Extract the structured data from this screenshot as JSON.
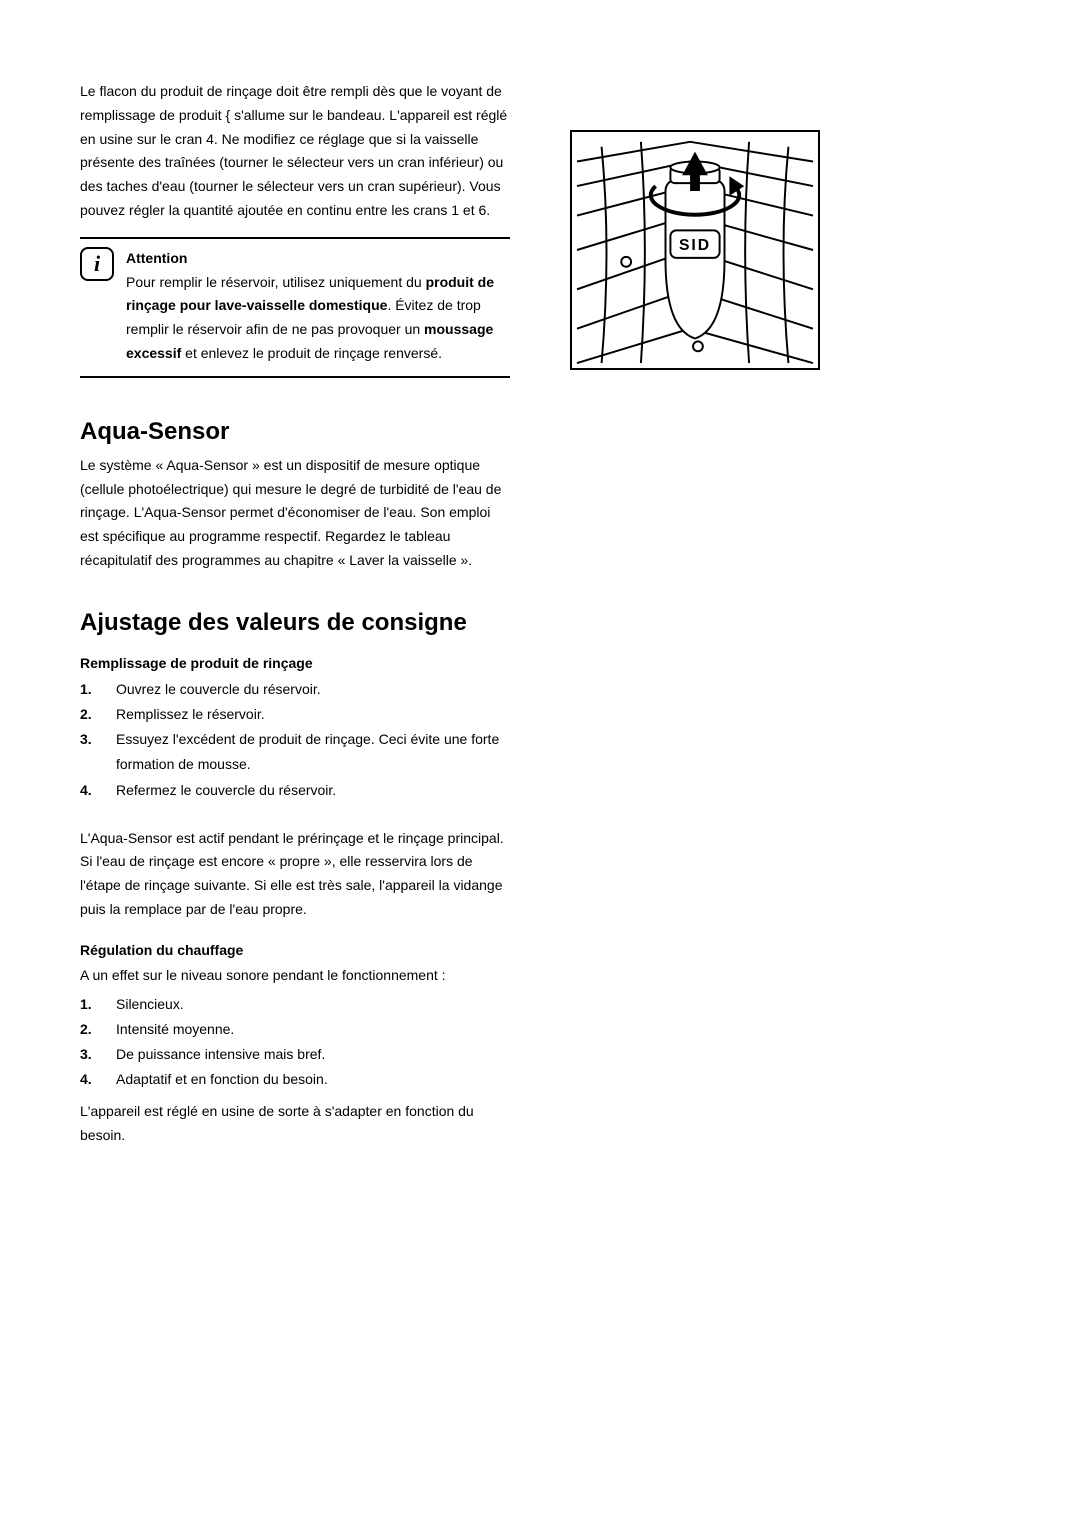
{
  "intro": {
    "p1": "Le flacon du produit de rinçage doit être rempli dès que le voyant de remplissage de produit { s'allume sur le bandeau. L'appareil est réglé en usine sur le cran 4. Ne modifiez ce réglage que si la vaisselle présente des traînées (tourner le sélecteur vers un cran inférieur) ou des taches d'eau (tourner le sélecteur vers un cran supérieur). Vous pouvez régler la quantité ajoutée en continu entre les crans 1 et 6.",
    "info": "Attention\nPour remplir le réservoir, utilisez uniquement du produit de rinçage pour lave-vaisselle domestique. Évitez de trop remplir le réservoir afin de ne pas provoquer un moussage excessif et enlevez le produit de rinçage renversé."
  },
  "aqua_sensor": {
    "heading": "Aqua-Sensor",
    "p1": "Le système « Aqua-Sensor » est un dispositif de mesure optique (cellule photoélectrique) qui mesure le degré de turbidité de l'eau de rinçage. L'Aqua-Sensor permet d'économiser de l'eau. Son emploi est spécifique au programme respectif. Regardez le tableau récapitulatif des programmes au chapitre « Laver la vaisselle »."
  },
  "settings": {
    "heading": "Ajustage des valeurs de consigne",
    "filling_title": "Remplissage de produit de rinçage",
    "filling_items": [
      {
        "num": "1.",
        "txt": "Ouvrez le couvercle du réservoir."
      },
      {
        "num": "2.",
        "txt": "Remplissez le réservoir."
      },
      {
        "num": "3.",
        "txt": "Essuyez l'excédent de produit de rinçage. Ceci évite une forte formation de mousse."
      },
      {
        "num": "4.",
        "txt": "Refermez le couvercle du réservoir."
      }
    ],
    "p2": "L'Aqua-Sensor est actif pendant le prérinçage et le rinçage principal. Si l'eau de rinçage est encore « propre », elle resservira lors de l'étape de rinçage suivante. Si elle est très sale, l'appareil la vidange puis la remplace par de l'eau propre.",
    "regulation_title": "Régulation du chauffage",
    "regulation_intro": "A un effet sur le niveau sonore pendant le fonctionnement :",
    "regulation_items": [
      {
        "num": "1.",
        "txt": "Silencieux."
      },
      {
        "num": "2.",
        "txt": "Intensité moyenne."
      },
      {
        "num": "3.",
        "txt": "De puissance intensive mais bref."
      },
      {
        "num": "4.",
        "txt": "Adaptatif et en fonction du besoin."
      }
    ],
    "p3": "L'appareil est réglé en usine de sorte à s'adapter en fonction du besoin."
  },
  "diagram": {
    "label": "SID",
    "stroke": "#000000",
    "fill": "#ffffff",
    "arrow_fill": "#000000"
  }
}
